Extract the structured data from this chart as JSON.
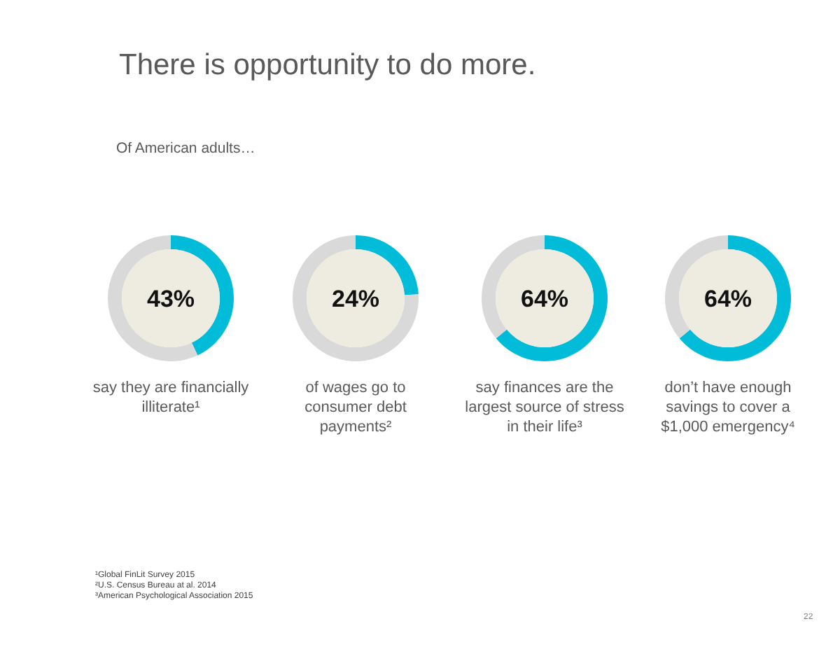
{
  "chart_data": [
    {
      "type": "other",
      "title": "There is opportunity to do more.",
      "subtitle": "Of American adults…",
      "annotations": [
        "¹Global FinLit Survey 2015",
        "²U.S. Census Bureau at al. 2014",
        "³American Psychological Association 2015",
        "22"
      ]
    },
    {
      "type": "donut",
      "categories": [
        null,
        null
      ],
      "values": [
        43,
        57
      ],
      "colors": [
        "#00bcd9",
        "#d9d9d9"
      ],
      "annotations": [
        "43%"
      ],
      "xlabel": "say they are financially illiterate¹"
    },
    {
      "type": "donut",
      "categories": [
        null,
        null
      ],
      "values": [
        24,
        76
      ],
      "colors": [
        "#00bcd9",
        "#d9d9d9"
      ],
      "annotations": [
        "24%"
      ],
      "xlabel": "of wages go to consumer debt payments²"
    },
    {
      "type": "donut",
      "categories": [
        null,
        null
      ],
      "values": [
        64,
        36
      ],
      "colors": [
        "#00bcd9",
        "#d9d9d9"
      ],
      "annotations": [
        "64%"
      ],
      "xlabel": "say finances are the largest source of stress in their life³"
    },
    {
      "type": "donut",
      "categories": [
        null,
        null
      ],
      "values": [
        64,
        36
      ],
      "colors": [
        "#00bcd9",
        "#d9d9d9"
      ],
      "annotations": [
        "64%"
      ],
      "xlabel": "don’t have enough savings to cover a $1,000 emergency⁴"
    }
  ]
}
